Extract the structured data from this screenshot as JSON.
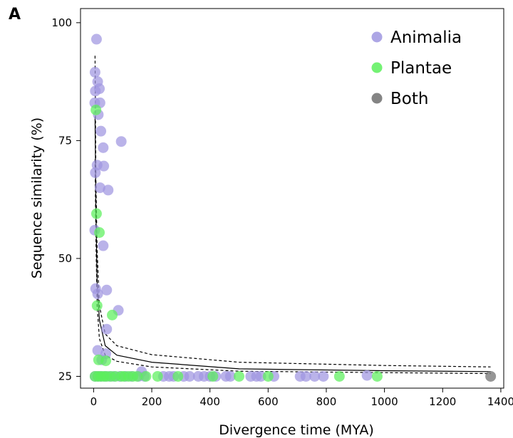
{
  "panel_label": "A",
  "chart_data": {
    "type": "scatter",
    "title": "",
    "xlabel": "Divergence time (MYA)",
    "ylabel": "Sequence similarity (%)",
    "xlim": [
      -45,
      1410
    ],
    "ylim": [
      22.5,
      103
    ],
    "x_ticks": [
      0,
      200,
      400,
      600,
      800,
      1000,
      1200,
      1400
    ],
    "y_ticks": [
      25,
      50,
      75,
      100
    ],
    "legend_position": "top-right",
    "colors": {
      "Animalia": "#9f96e0",
      "Plantae": "#5cf05c",
      "Both": "#6e6e6e",
      "fit": "#000000"
    },
    "series": [
      {
        "name": "Animalia",
        "points": [
          [
            10,
            96.5
          ],
          [
            5,
            89.5
          ],
          [
            14,
            87.5
          ],
          [
            20,
            86
          ],
          [
            6,
            85.5
          ],
          [
            4,
            83
          ],
          [
            22,
            83
          ],
          [
            16,
            80.5
          ],
          [
            25,
            77
          ],
          [
            33,
            73.5
          ],
          [
            95,
            74.8
          ],
          [
            12,
            69.8
          ],
          [
            35,
            69.6
          ],
          [
            6,
            68.2
          ],
          [
            22,
            65
          ],
          [
            50,
            64.5
          ],
          [
            4,
            56
          ],
          [
            33,
            52.7
          ],
          [
            7,
            43.6
          ],
          [
            45,
            43.3
          ],
          [
            14,
            42.5
          ],
          [
            85,
            39
          ],
          [
            45,
            35
          ],
          [
            14,
            30.5
          ],
          [
            42,
            29.8
          ],
          [
            28,
            28.5
          ],
          [
            5,
            25
          ],
          [
            15,
            25
          ],
          [
            25,
            25
          ],
          [
            40,
            25
          ],
          [
            55,
            25
          ],
          [
            70,
            25
          ],
          [
            90,
            25
          ],
          [
            110,
            25
          ],
          [
            130,
            25
          ],
          [
            155,
            25
          ],
          [
            165,
            26
          ],
          [
            175,
            25
          ],
          [
            240,
            25
          ],
          [
            260,
            25
          ],
          [
            275,
            25
          ],
          [
            310,
            25
          ],
          [
            330,
            25
          ],
          [
            360,
            25
          ],
          [
            380,
            25
          ],
          [
            400,
            25
          ],
          [
            420,
            25
          ],
          [
            455,
            25
          ],
          [
            470,
            25
          ],
          [
            540,
            25
          ],
          [
            560,
            25
          ],
          [
            575,
            25
          ],
          [
            620,
            25
          ],
          [
            710,
            25
          ],
          [
            730,
            25
          ],
          [
            760,
            25
          ],
          [
            790,
            25
          ],
          [
            940,
            25.2
          ]
        ]
      },
      {
        "name": "Plantae",
        "points": [
          [
            8,
            81.5
          ],
          [
            10,
            59.5
          ],
          [
            20,
            55.5
          ],
          [
            12,
            40
          ],
          [
            64,
            38
          ],
          [
            17,
            28.5
          ],
          [
            42,
            28.3
          ],
          [
            5,
            25
          ],
          [
            15,
            25
          ],
          [
            25,
            25
          ],
          [
            35,
            25
          ],
          [
            45,
            25
          ],
          [
            60,
            25
          ],
          [
            75,
            25
          ],
          [
            95,
            25
          ],
          [
            105,
            25
          ],
          [
            120,
            25
          ],
          [
            135,
            25
          ],
          [
            150,
            25
          ],
          [
            180,
            25
          ],
          [
            220,
            25
          ],
          [
            290,
            25
          ],
          [
            410,
            25
          ],
          [
            500,
            25
          ],
          [
            600,
            25
          ],
          [
            845,
            25
          ],
          [
            975,
            25
          ]
        ]
      },
      {
        "name": "Both",
        "points": [
          [
            1365,
            25
          ]
        ]
      }
    ],
    "fit_lines": [
      {
        "name": "fit",
        "style": "solid",
        "points": [
          [
            5,
            80
          ],
          [
            8,
            60
          ],
          [
            12,
            45
          ],
          [
            20,
            37
          ],
          [
            40,
            31.5
          ],
          [
            80,
            29.5
          ],
          [
            200,
            28
          ],
          [
            500,
            26.6
          ],
          [
            1000,
            26.2
          ],
          [
            1365,
            26
          ]
        ]
      },
      {
        "name": "upper",
        "style": "dashed",
        "points": [
          [
            5,
            93
          ],
          [
            8,
            67
          ],
          [
            12,
            52
          ],
          [
            20,
            40
          ],
          [
            40,
            34
          ],
          [
            80,
            31.5
          ],
          [
            200,
            29.6
          ],
          [
            500,
            28
          ],
          [
            1000,
            27.3
          ],
          [
            1365,
            27
          ]
        ]
      },
      {
        "name": "lower",
        "style": "dashed",
        "points": [
          [
            5,
            71
          ],
          [
            8,
            54
          ],
          [
            12,
            40
          ],
          [
            20,
            33
          ],
          [
            40,
            29.5
          ],
          [
            80,
            28.2
          ],
          [
            200,
            27
          ],
          [
            500,
            26.1
          ],
          [
            1000,
            25.8
          ],
          [
            1365,
            25.6
          ]
        ]
      }
    ]
  }
}
